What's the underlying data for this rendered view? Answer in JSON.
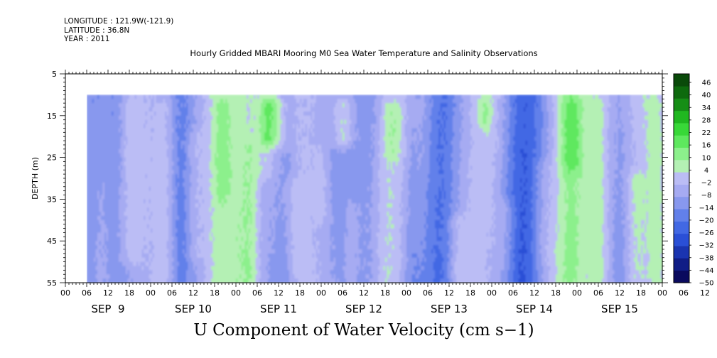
{
  "header": {
    "longitude": "LONGITUDE : 121.9W(-121.9)",
    "latitude": "LATITUDE : 36.8N",
    "year": "YEAR : 2011"
  },
  "chart_data": {
    "type": "heatmap",
    "title": "Hourly Gridded MBARI Mooring M0 Sea Water Temperature and Salinity Observations",
    "xlabel": "U Component of Water Velocity (cm s−1)",
    "ylabel": "DEPTH (m)",
    "ylim": [
      55,
      5
    ],
    "y_ticks": [
      5,
      15,
      25,
      35,
      45,
      55
    ],
    "x_hour_ticks": [
      "00",
      "06",
      "12",
      "18",
      "00",
      "06",
      "12",
      "18",
      "00",
      "06",
      "12",
      "18",
      "00",
      "06",
      "12",
      "18",
      "00",
      "06",
      "12",
      "18",
      "00",
      "06",
      "12",
      "18",
      "00",
      "06",
      "12",
      "18",
      "00",
      "06",
      "12",
      "18"
    ],
    "x_day_labels": [
      "SEP  9",
      "SEP 10",
      "SEP 11",
      "SEP 12",
      "SEP 13",
      "SEP 14",
      "SEP 15"
    ],
    "time_range_hours": [
      0,
      168
    ],
    "data_time_start_hour": 6,
    "data_time_end_hour": 168,
    "data_depth_range": [
      10,
      55
    ],
    "colorbar": {
      "labels": [
        "46",
        "40",
        "34",
        "28",
        "22",
        "16",
        "10",
        "4",
        "−2",
        "−8",
        "−14",
        "−20",
        "−26",
        "−32",
        "−38",
        "−44",
        "−50"
      ],
      "range": [
        -50,
        50
      ],
      "colors_low_to_high": [
        "#0a0a5e",
        "#101d86",
        "#1a34b0",
        "#2a4fd6",
        "#4268e4",
        "#6280ea",
        "#8898ee",
        "#a6abf2",
        "#bbbdf5",
        "#b4f0b4",
        "#8cf08c",
        "#5ee85e",
        "#38d838",
        "#20b820",
        "#168e16",
        "#0e6a0e",
        "#0a4a0a"
      ]
    },
    "notes": "Predominantly weak negative (light blue/lavender) velocities with vertical streaks of positive (green) values, strongest green near the surface around SEP 10 18h, SEP 11 06h and SEP 12 06h."
  }
}
